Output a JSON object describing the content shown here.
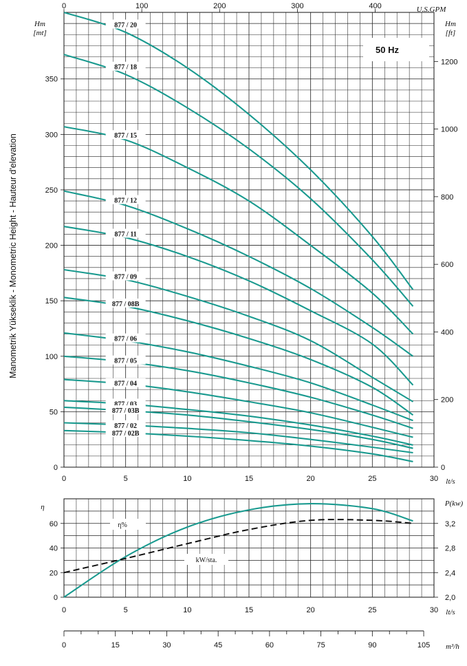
{
  "chart_data": [
    {
      "type": "line",
      "title": "",
      "frequency_label": "50 Hz",
      "ylabel": "Manometrik Yükseklik - Monometric Height - Hauteur d'elevation",
      "left_axis_unit": [
        "Hm",
        "[mt]"
      ],
      "right_axis_unit": [
        "Hm",
        "[ft]"
      ],
      "top_axis_unit": "U.S.GPM",
      "bottom_axis_unit": "lt/s",
      "xlim": [
        0,
        30
      ],
      "ylim": [
        0,
        410
      ],
      "x_ticks": [
        "0",
        "5",
        "10",
        "15",
        "20",
        "25",
        "30"
      ],
      "y_ticks": [
        "0",
        "50",
        "100",
        "150",
        "200",
        "250",
        "300",
        "350"
      ],
      "top_ticks": [
        "0",
        "100",
        "200",
        "300",
        "400"
      ],
      "right_ticks": [
        "0",
        "200",
        "400",
        "600",
        "800",
        "1000",
        "1200"
      ],
      "grid": true,
      "x": [
        0,
        5,
        10,
        15,
        20,
        25,
        28.3
      ],
      "series": [
        {
          "name": "877 / 20",
          "values": [
            410,
            392,
            360,
            318,
            268,
            208,
            160
          ]
        },
        {
          "name": "877 / 18",
          "values": [
            372,
            354,
            324,
            287,
            242,
            187,
            145
          ]
        },
        {
          "name": "877 / 15",
          "values": [
            307,
            295,
            270,
            240,
            200,
            157,
            120
          ]
        },
        {
          "name": "877 / 12",
          "values": [
            249,
            236,
            215,
            190,
            161,
            126,
            100
          ]
        },
        {
          "name": "877 / 11",
          "values": [
            217,
            207,
            190,
            168,
            141,
            111,
            74
          ]
        },
        {
          "name": "877 / 09",
          "values": [
            178,
            169,
            154,
            136,
            114,
            81,
            59
          ]
        },
        {
          "name": "877 / 08B",
          "values": [
            153,
            145,
            132,
            116,
            97,
            72,
            47
          ]
        },
        {
          "name": "877 / 06",
          "values": [
            121,
            114,
            104,
            91,
            76,
            56,
            42
          ]
        },
        {
          "name": "877 / 05",
          "values": [
            100,
            95,
            87,
            76,
            63,
            47,
            35
          ]
        },
        {
          "name": "877 / 04",
          "values": [
            79,
            75,
            68,
            59,
            49,
            36,
            27
          ]
        },
        {
          "name": "877 / 03",
          "values": [
            60,
            57,
            52,
            46,
            38,
            28,
            20
          ]
        },
        {
          "name": "877 / 03B",
          "values": [
            54,
            51,
            47,
            41,
            34,
            25,
            17
          ]
        },
        {
          "name": "877 / 02",
          "values": [
            40,
            38,
            35,
            31,
            25,
            18,
            13
          ]
        },
        {
          "name": "877 / 02B",
          "values": [
            33,
            31,
            28,
            24,
            19,
            12,
            5
          ]
        }
      ]
    },
    {
      "type": "line",
      "title": "",
      "left_axis_unit": "η",
      "right_axis_unit": "P(kw)",
      "bottom_axis_unit": "lt/s",
      "xlim": [
        0,
        30
      ],
      "ylim": [
        0,
        80
      ],
      "right_ylim": [
        2.0,
        3.6
      ],
      "x_ticks": [
        "0",
        "5",
        "10",
        "15",
        "20",
        "25",
        "30"
      ],
      "y_ticks": [
        "0",
        "20",
        "40",
        "60"
      ],
      "right_ticks": [
        "2,0",
        "2,4",
        "2,8",
        "3,2"
      ],
      "grid": true,
      "efficiency_label": "η%",
      "power_label": "kW/sta.",
      "efficiency": {
        "x": [
          0,
          5,
          10,
          15,
          20,
          25,
          28.3
        ],
        "values": [
          0,
          33,
          57,
          71,
          76,
          72,
          62
        ]
      },
      "power_kw": {
        "x": [
          0,
          5,
          10,
          15,
          20,
          25,
          28.3
        ],
        "values": [
          2.4,
          2.63,
          2.87,
          3.1,
          3.25,
          3.25,
          3.2
        ]
      }
    },
    {
      "type": "axis",
      "unit": "m³/h",
      "xlim": [
        0,
        105
      ],
      "ticks": [
        "0",
        "15",
        "30",
        "45",
        "60",
        "75",
        "90",
        "105"
      ]
    }
  ]
}
